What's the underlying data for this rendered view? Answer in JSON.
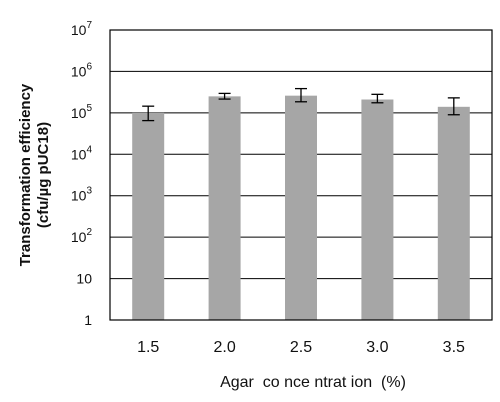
{
  "chart_data": {
    "type": "bar",
    "categories": [
      "1.5",
      "2.0",
      "2.5",
      "3.0",
      "3.5"
    ],
    "values": [
      100000,
      250000,
      260000,
      210000,
      140000
    ],
    "error_low": [
      65000,
      215000,
      185000,
      175000,
      90000
    ],
    "error_high": [
      145000,
      295000,
      385000,
      280000,
      230000
    ],
    "ylabel_lines": [
      "Transformation efficiency",
      "(cfu/µg pUC18)"
    ],
    "xlabel": "Agar  co nce ntrat ion  (%)",
    "yscale": "log",
    "ylim": [
      1,
      10000000
    ],
    "y_ticks": [
      {
        "value": 1,
        "base": "1",
        "exp": ""
      },
      {
        "value": 10,
        "base": "10",
        "exp": ""
      },
      {
        "value": 100,
        "base": "10",
        "exp": "2"
      },
      {
        "value": 1000,
        "base": "10",
        "exp": "3"
      },
      {
        "value": 10000,
        "base": "10",
        "exp": "4"
      },
      {
        "value": 100000,
        "base": "10",
        "exp": "5"
      },
      {
        "value": 1000000,
        "base": "10",
        "exp": "6"
      },
      {
        "value": 10000000,
        "base": "10",
        "exp": "7"
      }
    ],
    "grid": true,
    "bar_color": "#a6a6a6"
  }
}
